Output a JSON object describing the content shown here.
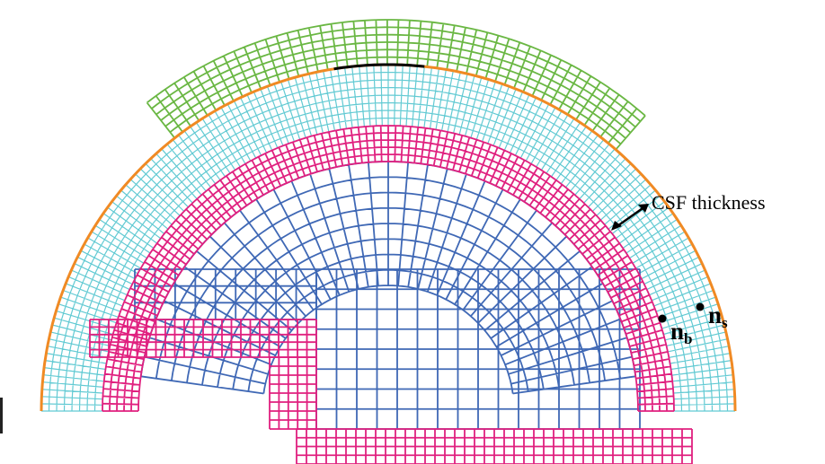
{
  "annotation": {
    "csf_label": "CSF thickness"
  },
  "nodes": {
    "brain": {
      "main": "n",
      "sub": "b"
    },
    "skull": {
      "main": "n",
      "sub": "s"
    }
  },
  "colors": {
    "skull_outline": "#f08a24",
    "scalp_mesh": "#6ab743",
    "csf_mesh": "#62cad3",
    "cortex_mesh": "#e0207f",
    "white_matter_mesh": "#3f68b5",
    "contact_edge": "#000000"
  }
}
